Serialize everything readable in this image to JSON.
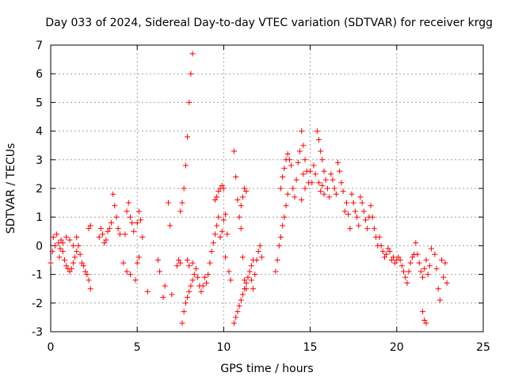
{
  "chart_data": {
    "type": "scatter",
    "title": "Day 033 of 2024, Sidereal Day-to-day VTEC variation (SDTVAR) for receiver krgg",
    "xlabel": "GPS time / hours",
    "ylabel": "SDTVAR / TECUs",
    "xlim": [
      0,
      25
    ],
    "ylim": [
      -3,
      7
    ],
    "xticks": [
      0,
      5,
      10,
      15,
      20,
      25
    ],
    "xtick_labels": [
      "0",
      "5",
      "10",
      "15",
      "20",
      "25"
    ],
    "yticks": [
      -3,
      -2,
      -1,
      0,
      1,
      2,
      3,
      4,
      5,
      6,
      7
    ],
    "ytick_labels": [
      "-3",
      "-2",
      "-1",
      "0",
      "1",
      "2",
      "3",
      "4",
      "5",
      "6",
      "7"
    ],
    "grid": true,
    "marker": "+",
    "color": "#ff0000",
    "series": [
      {
        "name": "SDTVAR",
        "points": [
          [
            0.0,
            -0.6
          ],
          [
            0.1,
            -0.2
          ],
          [
            0.15,
            0.3
          ],
          [
            0.25,
            0.0
          ],
          [
            0.35,
            0.4
          ],
          [
            0.45,
            0.1
          ],
          [
            0.5,
            -0.4
          ],
          [
            0.55,
            -0.1
          ],
          [
            0.6,
            0.2
          ],
          [
            0.7,
            -0.2
          ],
          [
            0.8,
            -0.5
          ],
          [
            0.9,
            -0.7
          ],
          [
            1.0,
            -0.8
          ],
          [
            1.1,
            -0.9
          ],
          [
            1.2,
            -0.8
          ],
          [
            1.3,
            -0.6
          ],
          [
            1.4,
            -0.4
          ],
          [
            1.5,
            -0.2
          ],
          [
            1.6,
            0.0
          ],
          [
            1.7,
            -0.3
          ],
          [
            1.8,
            -0.6
          ],
          [
            1.9,
            -0.7
          ],
          [
            2.0,
            -0.9
          ],
          [
            2.1,
            -1.0
          ],
          [
            2.2,
            -1.2
          ],
          [
            2.3,
            -1.5
          ],
          [
            0.7,
            0.1
          ],
          [
            0.9,
            0.3
          ],
          [
            1.1,
            0.2
          ],
          [
            1.3,
            0.0
          ],
          [
            1.5,
            0.3
          ],
          [
            2.2,
            0.6
          ],
          [
            2.3,
            0.7
          ],
          [
            2.8,
            0.3
          ],
          [
            2.9,
            0.6
          ],
          [
            3.0,
            0.4
          ],
          [
            3.1,
            0.1
          ],
          [
            3.2,
            0.2
          ],
          [
            3.3,
            0.5
          ],
          [
            3.4,
            0.6
          ],
          [
            3.5,
            0.8
          ],
          [
            3.6,
            1.8
          ],
          [
            3.7,
            1.4
          ],
          [
            3.8,
            1.0
          ],
          [
            3.9,
            0.6
          ],
          [
            4.0,
            0.4
          ],
          [
            4.2,
            -0.6
          ],
          [
            4.3,
            0.4
          ],
          [
            4.4,
            1.2
          ],
          [
            4.5,
            1.5
          ],
          [
            4.6,
            1.0
          ],
          [
            4.7,
            0.8
          ],
          [
            4.8,
            0.5
          ],
          [
            4.9,
            -1.2
          ],
          [
            5.0,
            -0.6
          ],
          [
            5.1,
            -0.4
          ],
          [
            4.4,
            -0.9
          ],
          [
            4.6,
            -1.0
          ],
          [
            5.0,
            0.8
          ],
          [
            5.1,
            1.2
          ],
          [
            5.2,
            0.9
          ],
          [
            5.3,
            0.3
          ],
          [
            5.6,
            -1.6
          ],
          [
            6.2,
            -0.5
          ],
          [
            6.3,
            -0.9
          ],
          [
            6.5,
            -1.8
          ],
          [
            6.6,
            -1.4
          ],
          [
            6.8,
            1.5
          ],
          [
            6.9,
            0.7
          ],
          [
            7.0,
            -1.7
          ],
          [
            7.3,
            -0.7
          ],
          [
            7.4,
            -0.5
          ],
          [
            7.5,
            -0.6
          ],
          [
            7.6,
            -2.7
          ],
          [
            7.7,
            -2.3
          ],
          [
            7.8,
            -2.0
          ],
          [
            7.9,
            -1.8
          ],
          [
            8.0,
            -1.6
          ],
          [
            8.1,
            -1.4
          ],
          [
            8.2,
            -1.2
          ],
          [
            8.3,
            -1.0
          ],
          [
            7.5,
            1.2
          ],
          [
            7.6,
            1.5
          ],
          [
            7.7,
            2.0
          ],
          [
            7.8,
            2.8
          ],
          [
            7.9,
            3.8
          ],
          [
            8.0,
            5.0
          ],
          [
            8.1,
            6.0
          ],
          [
            8.2,
            6.7
          ],
          [
            7.9,
            -0.5
          ],
          [
            8.0,
            -0.7
          ],
          [
            8.2,
            -0.6
          ],
          [
            8.4,
            -0.8
          ],
          [
            8.5,
            -1.1
          ],
          [
            8.6,
            -1.4
          ],
          [
            8.7,
            -1.6
          ],
          [
            8.8,
            -1.4
          ],
          [
            8.9,
            -1.1
          ],
          [
            9.0,
            -1.3
          ],
          [
            9.1,
            -1.0
          ],
          [
            9.2,
            -0.6
          ],
          [
            9.3,
            -0.2
          ],
          [
            9.4,
            0.1
          ],
          [
            9.5,
            0.4
          ],
          [
            9.6,
            0.7
          ],
          [
            9.7,
            1.0
          ],
          [
            9.8,
            0.3
          ],
          [
            9.9,
            0.5
          ],
          [
            10.0,
            0.9
          ],
          [
            10.1,
            1.1
          ],
          [
            9.5,
            1.6
          ],
          [
            9.6,
            1.7
          ],
          [
            9.7,
            1.9
          ],
          [
            9.8,
            2.0
          ],
          [
            9.9,
            2.1
          ],
          [
            10.0,
            2.0
          ],
          [
            10.1,
            -0.4
          ],
          [
            10.2,
            0.4
          ],
          [
            10.3,
            -0.9
          ],
          [
            10.4,
            -1.2
          ],
          [
            10.6,
            3.3
          ],
          [
            10.7,
            2.4
          ],
          [
            10.8,
            1.6
          ],
          [
            10.9,
            1.0
          ],
          [
            11.0,
            0.6
          ],
          [
            11.1,
            -0.4
          ],
          [
            11.2,
            -1.2
          ],
          [
            11.3,
            -1.5
          ],
          [
            10.6,
            -2.7
          ],
          [
            10.7,
            -2.5
          ],
          [
            10.8,
            -2.3
          ],
          [
            10.9,
            -2.1
          ],
          [
            11.0,
            -1.9
          ],
          [
            11.1,
            -1.7
          ],
          [
            11.2,
            -1.5
          ],
          [
            11.3,
            -1.3
          ],
          [
            11.4,
            -1.1
          ],
          [
            11.5,
            -0.9
          ],
          [
            11.6,
            -0.7
          ],
          [
            11.7,
            -0.5
          ],
          [
            11.0,
            1.4
          ],
          [
            11.1,
            1.7
          ],
          [
            11.2,
            2.0
          ],
          [
            11.3,
            1.9
          ],
          [
            11.6,
            -1.2
          ],
          [
            11.7,
            -1.5
          ],
          [
            11.8,
            -1.0
          ],
          [
            11.9,
            -0.5
          ],
          [
            12.0,
            -0.2
          ],
          [
            12.1,
            0.0
          ],
          [
            12.2,
            -0.4
          ],
          [
            13.0,
            -0.9
          ],
          [
            13.1,
            -0.5
          ],
          [
            13.2,
            0.0
          ],
          [
            13.3,
            0.3
          ],
          [
            13.4,
            0.7
          ],
          [
            13.5,
            1.0
          ],
          [
            13.6,
            1.4
          ],
          [
            13.7,
            1.8
          ],
          [
            13.3,
            2.0
          ],
          [
            13.4,
            2.4
          ],
          [
            13.5,
            2.7
          ],
          [
            13.6,
            3.0
          ],
          [
            13.7,
            3.2
          ],
          [
            13.8,
            3.0
          ],
          [
            13.9,
            2.8
          ],
          [
            14.0,
            2.0
          ],
          [
            14.1,
            1.7
          ],
          [
            14.2,
            2.3
          ],
          [
            14.3,
            2.9
          ],
          [
            14.4,
            3.3
          ],
          [
            14.5,
            4.0
          ],
          [
            14.6,
            3.5
          ],
          [
            14.7,
            3.0
          ],
          [
            14.8,
            2.6
          ],
          [
            14.9,
            2.2
          ],
          [
            14.6,
            2.5
          ],
          [
            14.7,
            2.0
          ],
          [
            14.5,
            1.6
          ],
          [
            15.0,
            2.6
          ],
          [
            15.1,
            2.2
          ],
          [
            15.2,
            2.8
          ],
          [
            15.3,
            2.5
          ],
          [
            15.4,
            4.0
          ],
          [
            15.5,
            3.7
          ],
          [
            15.6,
            3.3
          ],
          [
            15.7,
            3.0
          ],
          [
            15.8,
            2.6
          ],
          [
            15.9,
            2.3
          ],
          [
            16.0,
            2.0
          ],
          [
            16.1,
            1.7
          ],
          [
            15.5,
            2.2
          ],
          [
            15.6,
            1.9
          ],
          [
            15.7,
            2.1
          ],
          [
            15.8,
            1.8
          ],
          [
            16.2,
            2.5
          ],
          [
            16.3,
            2.3
          ],
          [
            16.4,
            2.0
          ],
          [
            16.5,
            1.8
          ],
          [
            16.6,
            2.9
          ],
          [
            16.7,
            2.6
          ],
          [
            16.8,
            2.2
          ],
          [
            16.9,
            1.9
          ],
          [
            17.0,
            1.2
          ],
          [
            17.1,
            1.5
          ],
          [
            17.2,
            1.1
          ],
          [
            17.3,
            0.6
          ],
          [
            17.4,
            1.8
          ],
          [
            17.5,
            1.5
          ],
          [
            17.6,
            1.2
          ],
          [
            17.7,
            1.0
          ],
          [
            17.8,
            0.7
          ],
          [
            17.9,
            1.7
          ],
          [
            18.0,
            1.5
          ],
          [
            18.1,
            1.2
          ],
          [
            18.2,
            0.9
          ],
          [
            18.3,
            0.6
          ],
          [
            18.4,
            1.0
          ],
          [
            18.5,
            1.4
          ],
          [
            18.6,
            1.0
          ],
          [
            18.7,
            0.6
          ],
          [
            18.8,
            0.3
          ],
          [
            18.9,
            0.0
          ],
          [
            19.0,
            0.3
          ],
          [
            19.1,
            0.0
          ],
          [
            19.2,
            -0.2
          ],
          [
            19.3,
            -0.4
          ],
          [
            19.4,
            -0.3
          ],
          [
            19.5,
            -0.1
          ],
          [
            19.6,
            -0.2
          ],
          [
            19.7,
            -0.5
          ],
          [
            19.8,
            -0.4
          ],
          [
            19.9,
            -0.6
          ],
          [
            20.0,
            -0.5
          ],
          [
            20.1,
            -0.4
          ],
          [
            20.2,
            -0.5
          ],
          [
            20.3,
            -0.7
          ],
          [
            20.4,
            -0.9
          ],
          [
            20.5,
            -1.1
          ],
          [
            20.6,
            -1.3
          ],
          [
            20.7,
            -0.9
          ],
          [
            20.8,
            -0.6
          ],
          [
            20.9,
            -0.4
          ],
          [
            21.0,
            -0.3
          ],
          [
            21.1,
            0.1
          ],
          [
            21.2,
            -0.3
          ],
          [
            21.3,
            -0.6
          ],
          [
            21.4,
            -0.9
          ],
          [
            21.5,
            -1.1
          ],
          [
            21.6,
            -0.8
          ],
          [
            21.7,
            -0.5
          ],
          [
            21.8,
            -1.0
          ],
          [
            21.9,
            -0.7
          ],
          [
            21.5,
            -2.3
          ],
          [
            21.6,
            -2.6
          ],
          [
            21.7,
            -2.7
          ],
          [
            22.0,
            -0.1
          ],
          [
            22.2,
            -0.3
          ],
          [
            22.3,
            -0.8
          ],
          [
            22.4,
            -1.5
          ],
          [
            22.5,
            -1.9
          ],
          [
            22.6,
            -0.5
          ],
          [
            22.7,
            -1.1
          ],
          [
            22.8,
            -0.6
          ],
          [
            22.9,
            -1.3
          ]
        ]
      }
    ]
  }
}
